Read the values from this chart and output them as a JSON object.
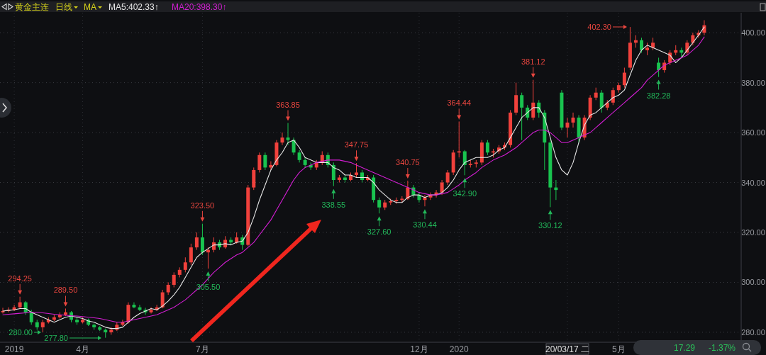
{
  "chart_data": {
    "type": "candlestick",
    "title": "黄金主连",
    "categories": [
      null,
      null,
      "2019",
      null,
      null,
      null,
      null,
      null,
      null,
      null,
      null,
      null,
      null,
      null,
      "4月",
      null,
      null,
      null,
      null,
      null,
      null,
      null,
      null,
      null,
      null,
      null,
      null,
      null,
      null,
      null,
      null,
      null,
      null,
      null,
      null,
      "7月",
      null,
      null,
      null,
      null,
      null,
      null,
      null,
      null,
      null,
      null,
      null,
      null,
      null,
      null,
      null,
      null,
      null,
      null,
      null,
      null,
      null,
      null,
      null,
      null,
      null,
      null,
      null,
      null,
      null,
      null,
      null,
      null,
      null,
      null,
      null,
      null,
      null,
      "12月",
      null,
      null,
      null,
      null,
      null,
      null,
      "2020",
      null,
      null,
      null,
      null,
      null,
      null,
      null,
      null,
      null,
      null,
      null,
      null,
      null,
      null,
      null,
      null,
      null,
      null,
      "20/03/17 二",
      null,
      null,
      null,
      null,
      null,
      null,
      null,
      null,
      "5月",
      null,
      null,
      null,
      null,
      null,
      null,
      null,
      null,
      null,
      null,
      null,
      null,
      null,
      null,
      null
    ],
    "ohlc": [
      [
        288,
        289.8,
        287.5,
        288.5
      ],
      [
        288.5,
        290,
        288,
        289
      ],
      [
        289,
        291,
        288.5,
        290
      ],
      [
        290,
        294.25,
        289.5,
        292
      ],
      [
        292,
        292.5,
        287,
        288
      ],
      [
        288,
        289,
        283,
        284
      ],
      [
        284,
        285,
        281,
        282
      ],
      [
        282,
        285,
        280,
        284
      ],
      [
        284,
        286,
        283.5,
        285
      ],
      [
        285,
        287,
        284.5,
        286
      ],
      [
        286,
        288,
        285.5,
        287
      ],
      [
        287,
        289.5,
        286.5,
        288
      ],
      [
        288,
        288.5,
        284,
        285
      ],
      [
        285,
        286,
        283,
        284
      ],
      [
        284,
        286,
        283.5,
        285
      ],
      [
        285,
        285.5,
        282.5,
        283
      ],
      [
        283,
        283.5,
        281,
        282
      ],
      [
        282,
        282.5,
        280.5,
        281
      ],
      [
        281,
        281.5,
        277.8,
        280
      ],
      [
        280,
        282,
        279,
        281
      ],
      [
        281,
        284,
        280.5,
        283
      ],
      [
        283,
        285,
        282.5,
        284
      ],
      [
        284,
        292,
        283.5,
        291
      ],
      [
        291,
        292,
        289.6,
        290
      ],
      [
        290,
        291,
        288.5,
        289
      ],
      [
        289,
        289.8,
        287,
        288
      ],
      [
        288,
        290,
        287.5,
        289
      ],
      [
        289,
        291,
        288.5,
        290
      ],
      [
        290,
        297,
        289.6,
        296
      ],
      [
        296,
        300,
        295,
        299
      ],
      [
        299,
        304,
        298,
        303
      ],
      [
        303,
        306,
        302,
        305
      ],
      [
        305,
        310,
        304,
        308
      ],
      [
        308,
        315.5,
        307,
        314
      ],
      [
        314,
        320,
        313,
        318
      ],
      [
        318,
        323.5,
        311,
        312
      ],
      [
        312,
        314,
        305.5,
        313
      ],
      [
        313,
        318,
        312,
        316
      ],
      [
        316,
        317,
        313,
        314
      ],
      [
        314,
        318.5,
        313.5,
        317
      ],
      [
        317,
        318,
        315,
        316
      ],
      [
        316,
        320,
        315.5,
        318
      ],
      [
        318,
        319,
        313,
        315
      ],
      [
        315,
        339,
        314.5,
        338
      ],
      [
        338,
        346,
        337,
        345
      ],
      [
        345,
        352,
        344,
        351
      ],
      [
        351,
        352,
        345,
        346
      ],
      [
        346,
        348.5,
        345,
        347
      ],
      [
        347,
        357,
        346.5,
        356
      ],
      [
        356,
        360,
        355,
        358
      ],
      [
        358,
        363.85,
        355,
        357
      ],
      [
        357,
        358,
        351,
        352
      ],
      [
        352,
        353,
        348,
        349
      ],
      [
        349,
        350,
        346,
        347
      ],
      [
        347,
        348,
        345,
        346
      ],
      [
        346,
        349,
        345,
        348
      ],
      [
        348,
        352.5,
        347,
        351
      ],
      [
        351,
        352,
        346,
        347
      ],
      [
        347,
        348,
        338.55,
        341
      ],
      [
        341,
        343,
        340,
        342
      ],
      [
        342,
        343,
        340,
        341
      ],
      [
        341,
        344,
        340.5,
        343
      ],
      [
        343,
        347.75,
        342,
        344
      ],
      [
        344,
        345,
        340,
        341
      ],
      [
        341,
        343,
        340.5,
        342
      ],
      [
        342,
        343,
        332,
        333
      ],
      [
        333,
        334,
        327.6,
        330
      ],
      [
        330,
        333,
        329,
        332
      ],
      [
        332,
        333.5,
        331,
        332.5
      ],
      [
        332.5,
        334,
        331.5,
        333
      ],
      [
        333,
        334.5,
        332,
        333.5
      ],
      [
        333.5,
        340.75,
        333,
        338
      ],
      [
        338,
        339,
        334,
        335
      ],
      [
        335,
        336,
        332,
        333
      ],
      [
        333,
        335,
        330.44,
        334
      ],
      [
        334,
        336,
        333,
        335
      ],
      [
        335,
        337,
        334,
        336
      ],
      [
        336,
        341,
        335,
        340
      ],
      [
        340,
        345,
        339,
        344
      ],
      [
        344,
        353,
        343,
        352
      ],
      [
        352,
        364.44,
        350,
        352.5
      ],
      [
        352.5,
        353,
        342.9,
        347
      ],
      [
        347,
        349,
        346,
        347.5
      ],
      [
        347.5,
        349,
        346,
        348
      ],
      [
        348,
        357,
        347,
        356
      ],
      [
        356,
        357,
        351,
        352
      ],
      [
        352,
        353.5,
        350,
        352.5
      ],
      [
        352.5,
        355,
        351.5,
        354
      ],
      [
        354,
        356,
        353,
        355
      ],
      [
        355,
        369,
        354,
        368
      ],
      [
        368,
        380,
        367,
        375
      ],
      [
        375,
        376,
        357,
        370
      ],
      [
        370,
        371,
        365,
        366
      ],
      [
        366,
        381.12,
        365,
        372
      ],
      [
        372,
        373,
        366,
        368
      ],
      [
        368,
        369,
        345,
        356
      ],
      [
        356,
        357,
        330.12,
        338
      ],
      [
        338,
        341,
        333,
        337
      ],
      [
        376,
        377,
        361,
        362
      ],
      [
        362,
        366,
        358,
        364
      ],
      [
        364,
        368,
        362,
        366
      ],
      [
        366,
        367,
        356,
        358
      ],
      [
        358,
        367,
        357,
        366
      ],
      [
        366,
        375,
        365,
        374
      ],
      [
        374,
        378,
        373,
        376
      ],
      [
        376,
        377,
        368,
        370
      ],
      [
        370,
        373,
        369,
        372
      ],
      [
        372,
        378,
        371,
        377
      ],
      [
        377,
        380,
        376,
        379
      ],
      [
        379,
        386,
        378,
        384
      ],
      [
        386,
        402.3,
        385,
        396
      ],
      [
        396,
        399,
        394,
        397
      ],
      [
        397,
        398,
        392,
        393
      ],
      [
        393,
        396,
        391,
        394
      ],
      [
        394,
        398,
        393,
        396
      ],
      [
        388,
        390,
        382.28,
        385
      ],
      [
        385,
        389,
        384,
        388
      ],
      [
        388,
        393,
        387,
        392
      ],
      [
        392,
        395,
        391,
        393
      ],
      [
        393,
        394,
        390,
        392
      ],
      [
        392,
        397,
        391,
        396
      ],
      [
        396,
        400,
        395,
        399
      ],
      [
        399,
        401,
        398,
        400
      ],
      [
        400,
        405,
        399,
        403
      ]
    ],
    "colors": [
      "#f0413c",
      "#f0413c",
      "#f0413c",
      "#f0413c",
      "#19c34f",
      "#19c34f",
      "#19c34f",
      "#f0413c",
      "#f0413c",
      "#f0413c",
      "#f0413c",
      "#f0413c",
      "#19c34f",
      "#19c34f",
      "#f0413c",
      "#19c34f",
      "#19c34f",
      "#19c34f",
      "#19c34f",
      "#f0413c",
      "#f0413c",
      "#f0413c",
      "#f0413c",
      "#19c34f",
      "#19c34f",
      "#19c34f",
      "#f0413c",
      "#f0413c",
      "#f0413c",
      "#f0413c",
      "#f0413c",
      "#f0413c",
      "#f0413c",
      "#f0413c",
      "#f0413c",
      "#19c34f",
      "#f0413c",
      "#f0413c",
      "#19c34f",
      "#f0413c",
      "#19c34f",
      "#f0413c",
      "#19c34f",
      "#f0413c",
      "#f0413c",
      "#f0413c",
      "#19c34f",
      "#f0413c",
      "#f0413c",
      "#f0413c",
      "#19c34f",
      "#19c34f",
      "#19c34f",
      "#19c34f",
      "#19c34f",
      "#f0413c",
      "#f0413c",
      "#19c34f",
      "#19c34f",
      "#f0413c",
      "#19c34f",
      "#f0413c",
      "#f0413c",
      "#19c34f",
      "#f0413c",
      "#19c34f",
      "#19c34f",
      "#f0413c",
      "#f0413c",
      "#f0413c",
      "#f0413c",
      "#f0413c",
      "#19c34f",
      "#19c34f",
      "#f0413c",
      "#f0413c",
      "#f0413c",
      "#f0413c",
      "#f0413c",
      "#f0413c",
      "#f0413c",
      "#19c34f",
      "#f0413c",
      "#f0413c",
      "#f0413c",
      "#19c34f",
      "#f0413c",
      "#f0413c",
      "#f0413c",
      "#f0413c",
      "#f0413c",
      "#19c34f",
      "#19c34f",
      "#f0413c",
      "#19c34f",
      "#19c34f",
      "#19c34f",
      "#19c34f",
      "#19c34f",
      "#f0413c",
      "#f0413c",
      "#19c34f",
      "#f0413c",
      "#f0413c",
      "#f0413c",
      "#19c34f",
      "#f0413c",
      "#f0413c",
      "#f0413c",
      "#f0413c",
      "#f0413c",
      "#f0413c",
      "#19c34f",
      "#f0413c",
      "#f0413c",
      "#19c34f",
      "#f0413c",
      "#f0413c",
      "#f0413c",
      "#19c34f",
      "#f0413c",
      "#f0413c",
      "#f0413c",
      "#f0413c"
    ],
    "series": [
      {
        "type": "line",
        "name": "MA5:402.33↑",
        "color": "#e6e6e6",
        "values": [
          288.5,
          288.8,
          289,
          289.5,
          289.5,
          288,
          287,
          286,
          285,
          284,
          285,
          286,
          286.5,
          286,
          285.5,
          284.5,
          284,
          283,
          282,
          281.5,
          281.5,
          282,
          284,
          286,
          287.5,
          288.5,
          289.5,
          289,
          290.5,
          292.5,
          295,
          298,
          302,
          306,
          310,
          312,
          313.5,
          315,
          315,
          315.5,
          315,
          316,
          316.5,
          320,
          326,
          333,
          339,
          345,
          349,
          352,
          356,
          357,
          354,
          350,
          349,
          348,
          348,
          348,
          346,
          345,
          343,
          343,
          342,
          342,
          342,
          340,
          337,
          335,
          333,
          332,
          332,
          334,
          335,
          335,
          334,
          335,
          335,
          336,
          338,
          341,
          345,
          348,
          349,
          350,
          350,
          350,
          351,
          353,
          354,
          358,
          362,
          366,
          368,
          370,
          370,
          366,
          358,
          350,
          345,
          343,
          348,
          356,
          363,
          367,
          368,
          370,
          372,
          374,
          375,
          377,
          383,
          389,
          393,
          395,
          394,
          393,
          392,
          391,
          388,
          390,
          393,
          396,
          399,
          402.3
        ]
      },
      {
        "type": "line",
        "name": "MA20:398.30↑",
        "color": "#d21ed2",
        "values": [
          287,
          287.2,
          287.4,
          287.6,
          287.8,
          288,
          288,
          287.8,
          287.5,
          287.2,
          287,
          286.8,
          286.6,
          286.5,
          286.3,
          286,
          285.8,
          285.5,
          285,
          284.5,
          284,
          284,
          284.5,
          285,
          285.5,
          286,
          286.5,
          287,
          288,
          289,
          290,
          291.5,
          293,
          295,
          297,
          299,
          301.5,
          304,
          306,
          308,
          309.5,
          311,
          312,
          314,
          316,
          319,
          322,
          325,
          329,
          333,
          337,
          341,
          344,
          346,
          347,
          348,
          348.5,
          349,
          349,
          349,
          348.5,
          348,
          347,
          346,
          345,
          344,
          343,
          342,
          341,
          340,
          339,
          338,
          337,
          336,
          335.5,
          335,
          335,
          335.5,
          336,
          337.5,
          339,
          341,
          342.5,
          344,
          346,
          347.5,
          349,
          350,
          351,
          352.5,
          354,
          356,
          358,
          360,
          361,
          361,
          360,
          358,
          356,
          356,
          357,
          358,
          359,
          360,
          362,
          364,
          366,
          368,
          370,
          372,
          374,
          376,
          378,
          381,
          383,
          385,
          387,
          388,
          389,
          390,
          391,
          393,
          395,
          398.3
        ]
      }
    ],
    "ylim": [
      276,
      408
    ],
    "yticks": [
      {
        "value": 280,
        "label": "280.00"
      },
      {
        "value": 300,
        "label": "300.00"
      },
      {
        "value": 320,
        "label": "320.00"
      },
      {
        "value": 340,
        "label": "340.00"
      },
      {
        "value": 360,
        "label": "360.00"
      },
      {
        "value": 380,
        "label": "380.00"
      },
      {
        "value": 400,
        "label": "400.00"
      }
    ],
    "grid": true,
    "legend": "top left",
    "annotations": [
      "日线",
      "MA",
      "17.29",
      "-1.37%",
      "280.00",
      "277.80",
      "402.30",
      {
        "text": "294.25",
        "y": 294.25
      },
      {
        "text": "289.50",
        "y": 289.5
      },
      {
        "text": "323.50",
        "y": 323.5
      },
      {
        "text": "305.50",
        "y": 305.5
      },
      {
        "text": "363.85",
        "y": 363.85
      },
      {
        "text": "338.55",
        "y": 338.55
      },
      {
        "text": "347.75",
        "y": 347.75
      },
      {
        "text": "327.60",
        "y": 327.6
      },
      {
        "text": "340.75",
        "y": 340.75
      },
      {
        "text": "330.44",
        "y": 330.44
      },
      {
        "text": "364.44",
        "y": 364.44
      },
      {
        "text": "342.90",
        "y": 342.9
      },
      {
        "text": "381.12",
        "y": 381.12
      },
      {
        "text": "330.12",
        "y": 330.12
      },
      {
        "text": "382.28",
        "y": 382.28
      }
    ]
  }
}
